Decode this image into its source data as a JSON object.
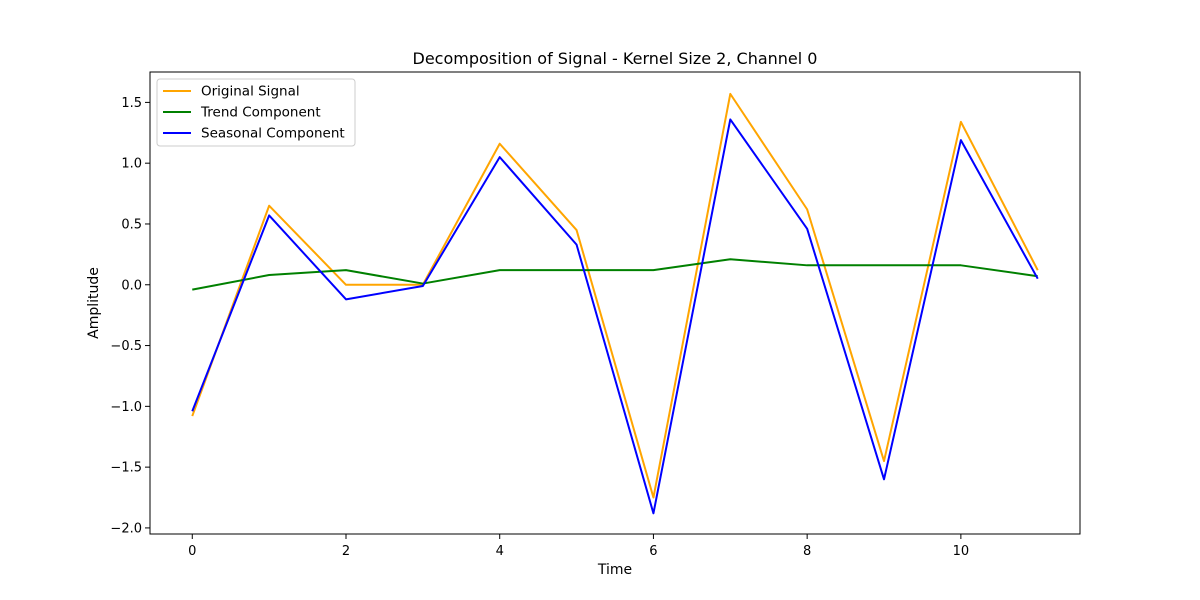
{
  "chart_data": {
    "type": "line",
    "title": "Decomposition of Signal - Kernel Size 2, Channel 0",
    "xlabel": "Time",
    "ylabel": "Amplitude",
    "xlim": [
      -0.55,
      11.55
    ],
    "ylim": [
      -2.05,
      1.75
    ],
    "xticks": [
      0,
      2,
      4,
      6,
      8,
      10
    ],
    "yticks": [
      -2.0,
      -1.5,
      -1.0,
      -0.5,
      0.0,
      0.5,
      1.0,
      1.5
    ],
    "xtick_labels": [
      "0",
      "2",
      "4",
      "6",
      "8",
      "10"
    ],
    "ytick_labels": [
      "−2.0",
      "−1.5",
      "−1.0",
      "−0.5",
      "0.0",
      "0.5",
      "1.0",
      "1.5"
    ],
    "grid": false,
    "legend_position": "top-left",
    "x": [
      0,
      1,
      2,
      3,
      4,
      5,
      6,
      7,
      8,
      9,
      10,
      11
    ],
    "series": [
      {
        "name": "Original Signal",
        "color": "#ffa500",
        "values": [
          -1.08,
          0.65,
          0.0,
          0.0,
          1.16,
          0.45,
          -1.75,
          1.57,
          0.62,
          -1.45,
          1.34,
          0.12
        ]
      },
      {
        "name": "Trend Component",
        "color": "#008000",
        "values": [
          -0.04,
          0.08,
          0.12,
          0.01,
          0.12,
          0.12,
          0.12,
          0.21,
          0.16,
          0.16,
          0.16,
          0.07
        ]
      },
      {
        "name": "Seasonal Component",
        "color": "#0000ff",
        "values": [
          -1.04,
          0.57,
          -0.12,
          -0.01,
          1.05,
          0.33,
          -1.88,
          1.36,
          0.46,
          -1.6,
          1.19,
          0.05
        ]
      }
    ]
  }
}
